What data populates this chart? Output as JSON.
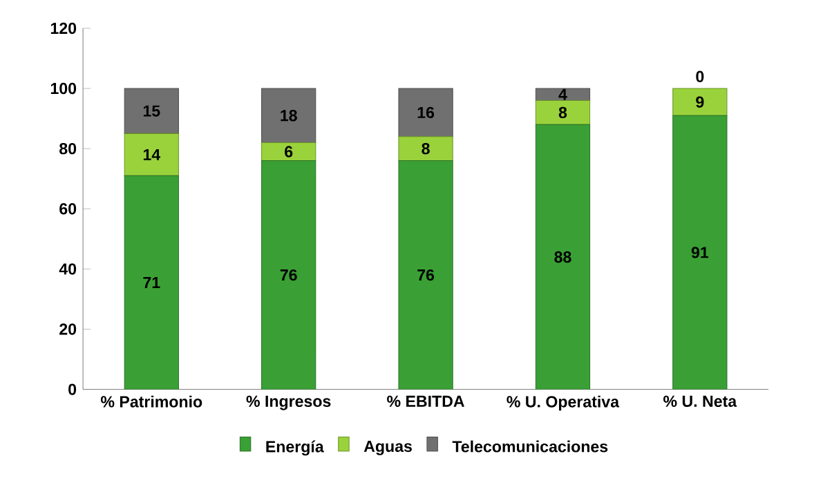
{
  "chart_data": {
    "type": "bar",
    "stacked": true,
    "categories": [
      "% Patrimonio",
      "% Ingresos",
      "% EBITDA",
      "% U. Operativa",
      "% U. Neta"
    ],
    "series": [
      {
        "name": "Energía",
        "color": "#3aa035",
        "values": [
          71,
          76,
          76,
          88,
          91
        ]
      },
      {
        "name": "Aguas",
        "color": "#9ad23c",
        "values": [
          14,
          6,
          8,
          8,
          9
        ]
      },
      {
        "name": "Telecomunicaciones",
        "color": "#707070",
        "values": [
          15,
          18,
          16,
          4,
          0
        ]
      }
    ],
    "ylim": [
      0,
      120
    ],
    "yticks": [
      0,
      20,
      40,
      60,
      80,
      100,
      120
    ],
    "data_labels": true,
    "legend": "bottom",
    "grid": false
  }
}
